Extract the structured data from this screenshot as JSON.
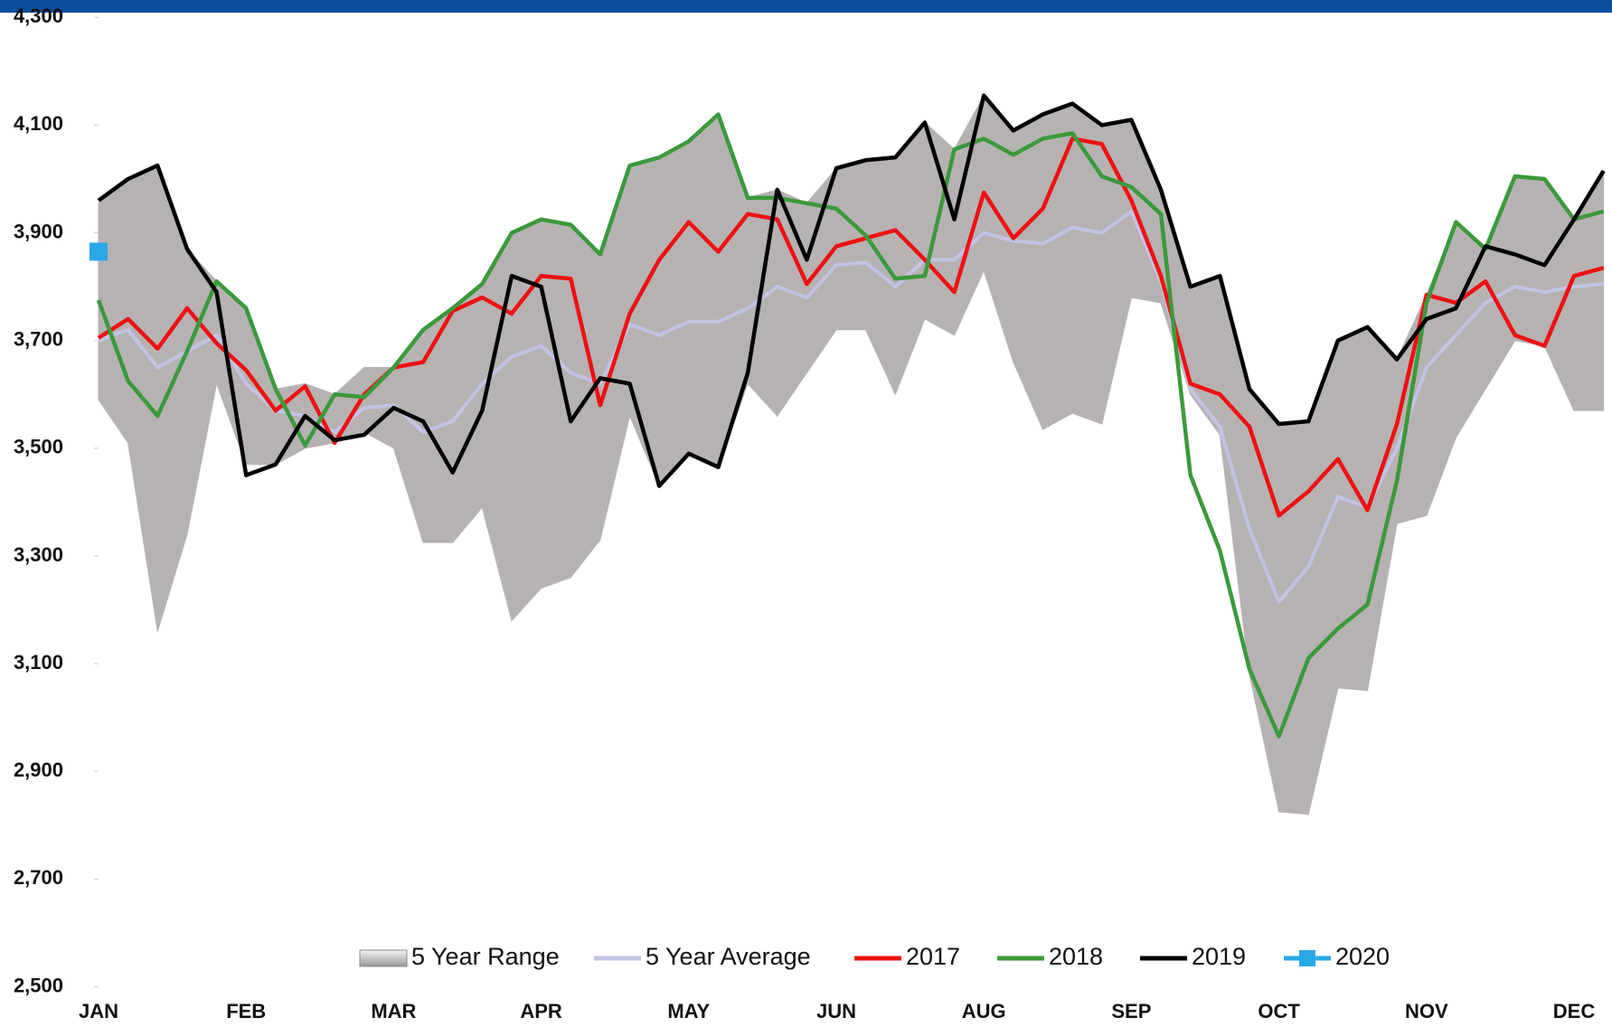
{
  "chart_data": {
    "type": "line",
    "categories": [
      "JAN",
      null,
      null,
      null,
      null,
      "FEB",
      null,
      null,
      null,
      null,
      "MAR",
      null,
      null,
      null,
      null,
      "APR",
      null,
      null,
      null,
      null,
      "MAY",
      null,
      null,
      null,
      null,
      "JUN",
      null,
      null,
      null,
      null,
      "AUG",
      null,
      null,
      null,
      null,
      "SEP",
      null,
      null,
      null,
      null,
      "OCT",
      null,
      null,
      null,
      null,
      "NOV",
      null,
      null,
      null,
      null,
      "DEC",
      null
    ],
    "ylim": [
      2500,
      4300
    ],
    "yticks": [
      {
        "value": 2500,
        "label": "2,500"
      },
      {
        "value": 2700,
        "label": "2,700"
      },
      {
        "value": 2900,
        "label": "2,900"
      },
      {
        "value": 3100,
        "label": "3,100"
      },
      {
        "value": 3300,
        "label": "3,300"
      },
      {
        "value": 3500,
        "label": "3,500"
      },
      {
        "value": 3700,
        "label": "3,700"
      },
      {
        "value": 3900,
        "label": "3,900"
      },
      {
        "value": 4100,
        "label": "4,100"
      },
      {
        "value": 4300,
        "label": "4,300"
      }
    ],
    "legend": "bottom",
    "series": [
      {
        "name": "5 Year Range",
        "color": "#b7b2b2",
        "low": [
          3590,
          3510,
          3160,
          3340,
          3620,
          3470,
          3470,
          3500,
          3510,
          3530,
          3500,
          3325,
          3325,
          3390,
          3180,
          3240,
          3260,
          3330,
          3560,
          3430,
          3490,
          3465,
          3620,
          3560,
          3640,
          3720,
          3720,
          3600,
          3740,
          3710,
          3830,
          3660,
          3535,
          3565,
          3545,
          3780,
          3770,
          3600,
          3525,
          3080,
          2825,
          2820,
          3055,
          3050,
          3360,
          3375,
          3520,
          3610,
          3700,
          3690,
          3570,
          3570
        ],
        "high": [
          3955,
          4000,
          4025,
          3870,
          3810,
          3760,
          3610,
          3620,
          3600,
          3650,
          3650,
          3720,
          3760,
          3805,
          3900,
          3925,
          3915,
          3860,
          4025,
          4040,
          4070,
          4120,
          3965,
          3980,
          3955,
          4020,
          4035,
          4040,
          4105,
          4055,
          4155,
          4090,
          4120,
          4140,
          4100,
          4110,
          3980,
          3800,
          3820,
          3610,
          3545,
          3550,
          3700,
          3725,
          3665,
          3785,
          3920,
          3875,
          4005,
          4000,
          3925,
          4015
        ]
      },
      {
        "name": "5 Year Average",
        "color": "#c3c3e6",
        "values": [
          3700,
          3720,
          3650,
          3680,
          3710,
          3620,
          3570,
          3560,
          3530,
          3575,
          3580,
          3530,
          3550,
          3620,
          3670,
          3690,
          3640,
          3620,
          3730,
          3710,
          3735,
          3735,
          3760,
          3800,
          3780,
          3840,
          3845,
          3800,
          3850,
          3850,
          3900,
          3885,
          3880,
          3910,
          3900,
          3940,
          3810,
          3610,
          3540,
          3350,
          3215,
          3280,
          3410,
          3390,
          3500,
          3650,
          3710,
          3770,
          3800,
          3790,
          3800,
          3805
        ]
      },
      {
        "name": "2017",
        "color": "#ee1111",
        "values": [
          3705,
          3740,
          3685,
          3760,
          3695,
          3645,
          3570,
          3615,
          3510,
          3600,
          3650,
          3660,
          3755,
          3780,
          3750,
          3820,
          3815,
          3580,
          3750,
          3850,
          3920,
          3865,
          3935,
          3925,
          3805,
          3875,
          3890,
          3905,
          3850,
          3790,
          3975,
          3890,
          3945,
          4075,
          4065,
          3960,
          3820,
          3620,
          3600,
          3540,
          3375,
          3420,
          3480,
          3385,
          3545,
          3785,
          3770,
          3810,
          3710,
          3690,
          3820,
          3835
        ]
      },
      {
        "name": "2018",
        "color": "#3a9a3a",
        "values": [
          3775,
          3625,
          3560,
          3680,
          3810,
          3760,
          3610,
          3505,
          3600,
          3595,
          3650,
          3720,
          3760,
          3805,
          3900,
          3925,
          3915,
          3860,
          4025,
          4040,
          4070,
          4120,
          3965,
          3965,
          3955,
          3945,
          3895,
          3815,
          3820,
          4055,
          4075,
          4045,
          4075,
          4085,
          4005,
          3985,
          3935,
          3450,
          3310,
          3090,
          2965,
          3110,
          3165,
          3210,
          3440,
          3770,
          3920,
          3870,
          4005,
          4000,
          3925,
          3940
        ]
      },
      {
        "name": "2019",
        "color": "#000000",
        "values": [
          3960,
          4000,
          4025,
          3870,
          3790,
          3450,
          3470,
          3560,
          3515,
          3525,
          3575,
          3550,
          3455,
          3570,
          3820,
          3800,
          3550,
          3630,
          3620,
          3430,
          3490,
          3465,
          3640,
          3980,
          3850,
          4020,
          4035,
          4040,
          4105,
          3925,
          4155,
          4090,
          4120,
          4140,
          4100,
          4110,
          3980,
          3800,
          3820,
          3610,
          3545,
          3550,
          3700,
          3725,
          3665,
          3740,
          3760,
          3875,
          3860,
          3840,
          3925,
          4015
        ]
      },
      {
        "name": "2020",
        "color": "#29a8e8",
        "marker": "square",
        "values": [
          3865,
          null,
          null,
          null,
          null,
          null,
          null,
          null,
          null,
          null,
          null,
          null,
          null,
          null,
          null,
          null,
          null,
          null,
          null,
          null,
          null,
          null,
          null,
          null,
          null,
          null,
          null,
          null,
          null,
          null,
          null,
          null,
          null,
          null,
          null,
          null,
          null,
          null,
          null,
          null,
          null,
          null,
          null,
          null,
          null,
          null,
          null,
          null,
          null,
          null,
          null,
          null
        ]
      }
    ]
  }
}
